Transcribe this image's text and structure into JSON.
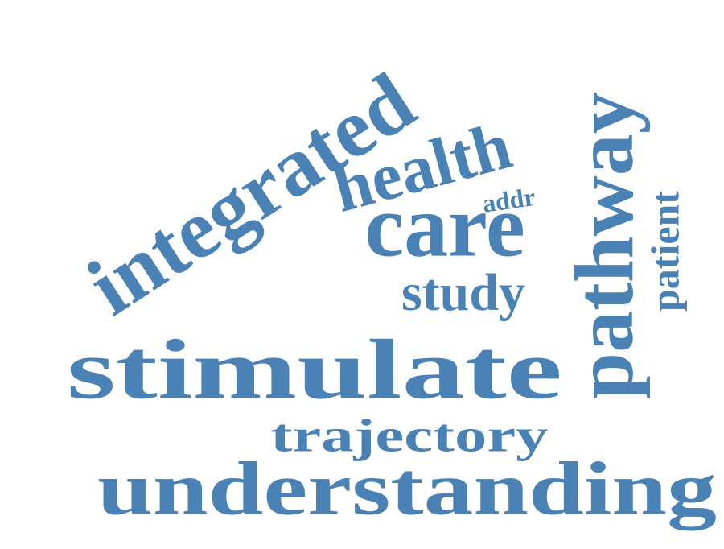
{
  "word_color": "#4a82b6",
  "words": [
    {
      "id": "integrated",
      "text": "integrated"
    },
    {
      "id": "health",
      "text": "health"
    },
    {
      "id": "care",
      "text": "care"
    },
    {
      "id": "addr",
      "text": "addr"
    },
    {
      "id": "pathway",
      "text": "pathway"
    },
    {
      "id": "patient",
      "text": "patient"
    },
    {
      "id": "study",
      "text": "study"
    },
    {
      "id": "stimulate",
      "text": "stimulate"
    },
    {
      "id": "trajectory",
      "text": "trajectory"
    },
    {
      "id": "understanding",
      "text": "understanding"
    }
  ]
}
